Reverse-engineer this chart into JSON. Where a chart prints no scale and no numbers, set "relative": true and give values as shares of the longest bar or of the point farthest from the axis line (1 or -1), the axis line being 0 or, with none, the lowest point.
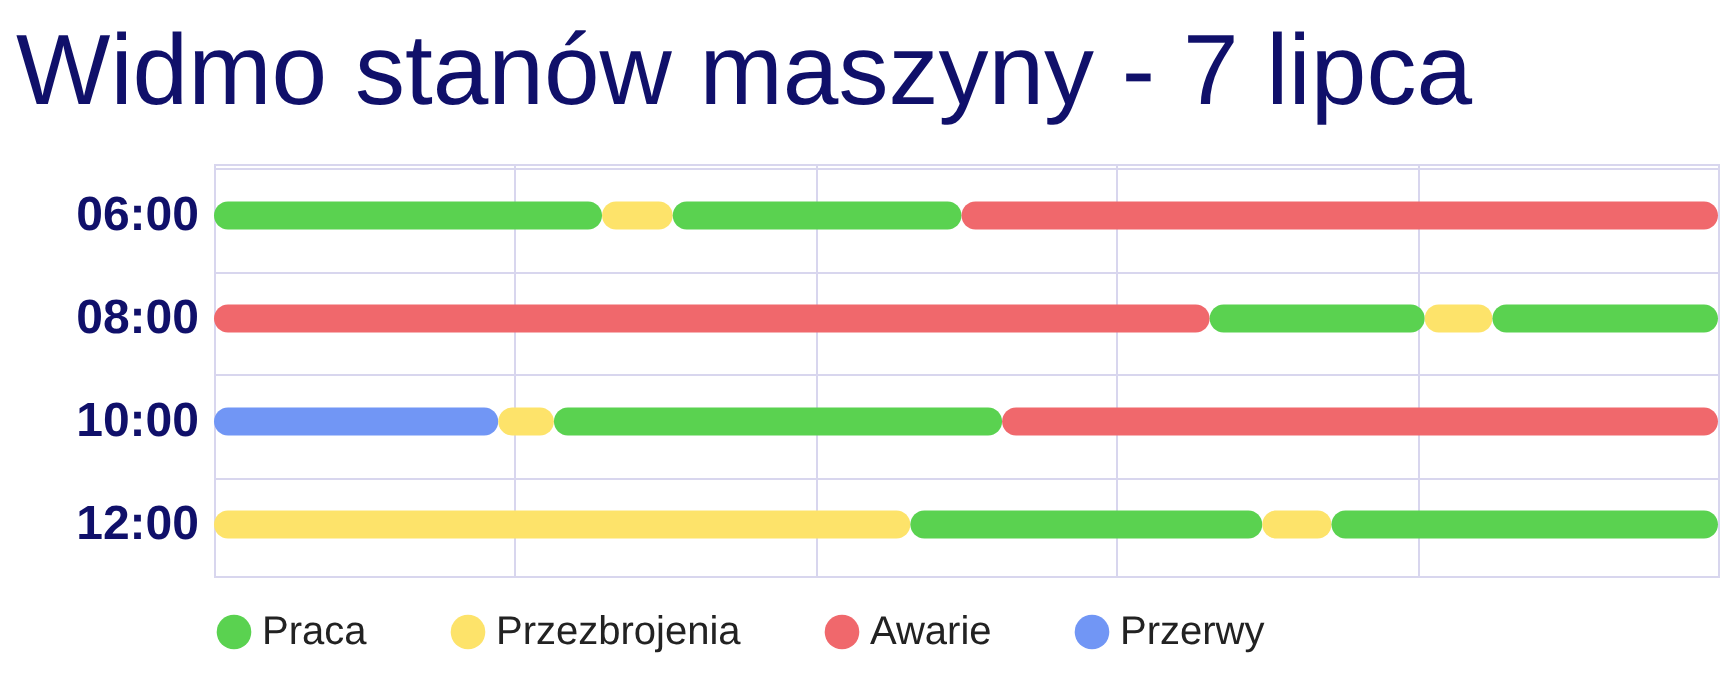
{
  "chart_data": {
    "type": "bar",
    "title": "Widmo stanów maszyny - 7 lipca",
    "orientation": "horizontal",
    "stacked": true,
    "relative": true,
    "grid": true,
    "legend": "bottom",
    "categories": [
      "06:00",
      "08:00",
      "10:00",
      "12:00"
    ],
    "series": [
      {
        "name": "Praca",
        "color": "#5ad250",
        "values": [
          0.258,
          null,
          null,
          null
        ]
      },
      {
        "name": "Przezbrojenia",
        "color": "#fde36a",
        "values": [
          0.047,
          null,
          null,
          0.463
        ]
      },
      {
        "name": "Awarie",
        "color": "#f0686c",
        "values": [
          null,
          0.662,
          null,
          null
        ]
      },
      {
        "name": "Przerwy",
        "color": "#7196f5",
        "values": [
          null,
          null,
          0.189,
          null
        ]
      },
      {
        "color": "#fde36a",
        "values": [
          null,
          null,
          0.037,
          null
        ]
      },
      {
        "color": "#5ad250",
        "values": [
          0.192,
          0.143,
          0.298,
          0.234
        ]
      },
      {
        "color": "#fde36a",
        "values": [
          null,
          0.045,
          null,
          0.046
        ]
      },
      {
        "color": "#5ad250",
        "values": [
          null,
          0.15,
          null,
          0.257
        ]
      },
      {
        "color": "#f0686c",
        "values": [
          0.503,
          null,
          0.476,
          null
        ]
      }
    ]
  }
}
